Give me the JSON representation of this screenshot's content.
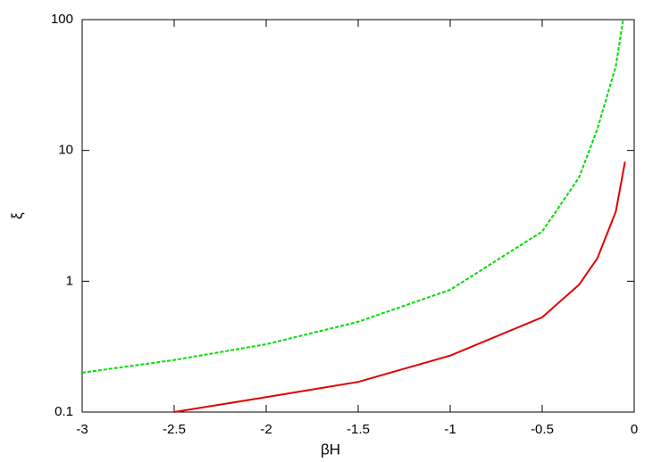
{
  "chart_data": {
    "type": "line",
    "xlabel": "βH",
    "ylabel": "ξ",
    "log_y": true,
    "xlim": [
      -3,
      0
    ],
    "xticks": [
      -3,
      -2.5,
      -2,
      -1.5,
      -1,
      -0.5,
      0
    ],
    "ylim": [
      0.1,
      100
    ],
    "yticks": [
      0.1,
      1,
      10,
      100
    ],
    "series": [
      {
        "color": "#00dd00",
        "dashed": true,
        "x": [
          -3,
          -2.5,
          -2,
          -1.5,
          -1,
          -0.5,
          -0.3,
          -0.2,
          -0.1,
          -0.06
        ],
        "values": [
          0.2,
          0.25,
          0.33,
          0.49,
          0.86,
          2.4,
          6.2,
          14.6,
          44,
          100
        ]
      },
      {
        "color": "#e00000",
        "dashed": false,
        "x": [
          -2.5,
          -2,
          -1.5,
          -1,
          -0.5,
          -0.3,
          -0.2,
          -0.1,
          -0.05
        ],
        "values": [
          0.1,
          0.13,
          0.17,
          0.27,
          0.53,
          0.94,
          1.5,
          3.4,
          8.2
        ]
      }
    ]
  }
}
